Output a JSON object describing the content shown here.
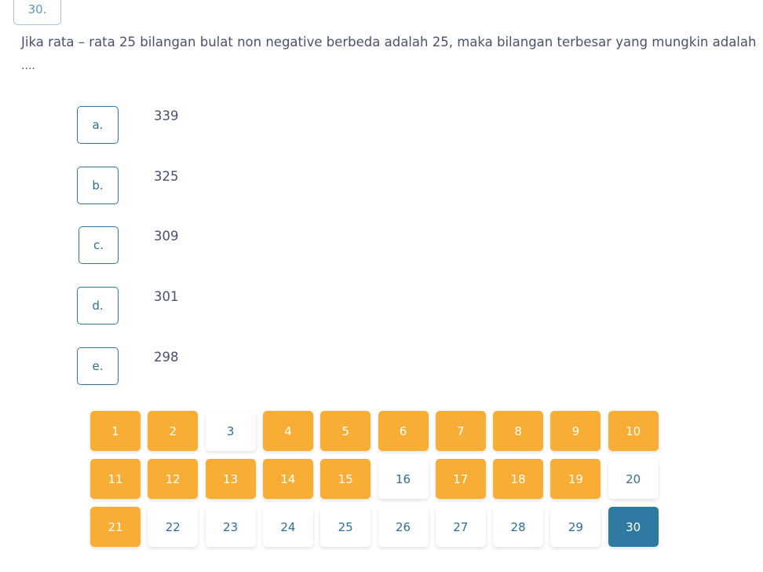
{
  "question": {
    "number": "30.",
    "text": "Jika rata – rata 25 bilangan bulat non negative berbeda adalah 25, maka bilangan terbesar yang mungkin adalah",
    "ellipsis": "...."
  },
  "options": [
    {
      "letter": "a.",
      "value": "339"
    },
    {
      "letter": "b.",
      "value": "325"
    },
    {
      "letter": "c.",
      "value": "309"
    },
    {
      "letter": "d.",
      "value": "301"
    },
    {
      "letter": "e.",
      "value": "298"
    }
  ],
  "colors": {
    "answered": "#f8ae34",
    "current": "#2f7aa3",
    "unanswered": "#ffffff"
  },
  "navigation": [
    {
      "label": "1",
      "state": "answered"
    },
    {
      "label": "2",
      "state": "answered"
    },
    {
      "label": "3",
      "state": "unanswered"
    },
    {
      "label": "4",
      "state": "answered"
    },
    {
      "label": "5",
      "state": "answered"
    },
    {
      "label": "6",
      "state": "answered"
    },
    {
      "label": "7",
      "state": "answered"
    },
    {
      "label": "8",
      "state": "answered"
    },
    {
      "label": "9",
      "state": "answered"
    },
    {
      "label": "10",
      "state": "answered"
    },
    {
      "label": "11",
      "state": "answered"
    },
    {
      "label": "12",
      "state": "answered"
    },
    {
      "label": "13",
      "state": "answered"
    },
    {
      "label": "14",
      "state": "answered"
    },
    {
      "label": "15",
      "state": "answered"
    },
    {
      "label": "16",
      "state": "unanswered"
    },
    {
      "label": "17",
      "state": "answered"
    },
    {
      "label": "18",
      "state": "answered"
    },
    {
      "label": "19",
      "state": "answered"
    },
    {
      "label": "20",
      "state": "unanswered"
    },
    {
      "label": "21",
      "state": "answered"
    },
    {
      "label": "22",
      "state": "unanswered"
    },
    {
      "label": "23",
      "state": "unanswered"
    },
    {
      "label": "24",
      "state": "unanswered"
    },
    {
      "label": "25",
      "state": "unanswered"
    },
    {
      "label": "26",
      "state": "unanswered"
    },
    {
      "label": "27",
      "state": "unanswered"
    },
    {
      "label": "28",
      "state": "unanswered"
    },
    {
      "label": "29",
      "state": "unanswered"
    },
    {
      "label": "30",
      "state": "current"
    }
  ]
}
